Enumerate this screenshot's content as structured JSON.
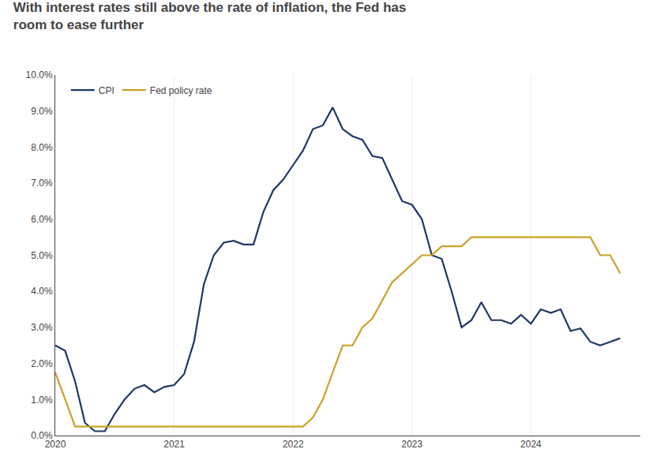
{
  "chart_data": {
    "type": "line",
    "title": "With interest rates still above the rate of inflation, the Fed has\nroom to ease further",
    "x": [
      2020.0,
      2020.083,
      2020.167,
      2020.25,
      2020.333,
      2020.417,
      2020.5,
      2020.583,
      2020.667,
      2020.75,
      2020.833,
      2020.917,
      2021.0,
      2021.083,
      2021.167,
      2021.25,
      2021.333,
      2021.417,
      2021.5,
      2021.583,
      2021.667,
      2021.75,
      2021.833,
      2021.917,
      2022.0,
      2022.083,
      2022.167,
      2022.25,
      2022.333,
      2022.417,
      2022.5,
      2022.583,
      2022.667,
      2022.75,
      2022.833,
      2022.917,
      2023.0,
      2023.083,
      2023.167,
      2023.25,
      2023.333,
      2023.417,
      2023.5,
      2023.583,
      2023.667,
      2023.75,
      2023.833,
      2023.917,
      2024.0,
      2024.083,
      2024.167,
      2024.25,
      2024.333,
      2024.417,
      2024.5,
      2024.583,
      2024.667,
      2024.75
    ],
    "series": [
      {
        "name": "CPI",
        "color": "#1f3864",
        "values": [
          2.5,
          2.35,
          1.5,
          0.35,
          0.12,
          0.12,
          0.6,
          1.0,
          1.3,
          1.4,
          1.2,
          1.35,
          1.4,
          1.7,
          2.6,
          4.2,
          5.0,
          5.35,
          5.4,
          5.3,
          5.3,
          6.2,
          6.8,
          7.1,
          7.5,
          7.9,
          8.5,
          8.6,
          9.1,
          8.5,
          8.3,
          8.2,
          7.75,
          7.7,
          7.1,
          6.5,
          6.4,
          6.0,
          5.0,
          4.9,
          4.0,
          3.0,
          3.2,
          3.7,
          3.2,
          3.2,
          3.1,
          3.35,
          3.1,
          3.5,
          3.4,
          3.5,
          2.9,
          2.97,
          2.6,
          2.5,
          2.6,
          2.7
        ]
      },
      {
        "name": "Fed policy rate",
        "color": "#c9a227",
        "values": [
          1.75,
          1.0,
          0.25,
          0.25,
          0.25,
          0.25,
          0.25,
          0.25,
          0.25,
          0.25,
          0.25,
          0.25,
          0.25,
          0.25,
          0.25,
          0.25,
          0.25,
          0.25,
          0.25,
          0.25,
          0.25,
          0.25,
          0.25,
          0.25,
          0.25,
          0.25,
          0.5,
          1.0,
          1.75,
          2.5,
          2.5,
          3.0,
          3.25,
          3.75,
          4.25,
          4.5,
          4.75,
          5.0,
          5.0,
          5.25,
          5.25,
          5.25,
          5.5,
          5.5,
          5.5,
          5.5,
          5.5,
          5.5,
          5.5,
          5.5,
          5.5,
          5.5,
          5.5,
          5.5,
          5.5,
          5.0,
          5.0,
          4.5
        ]
      }
    ],
    "xlim": [
      2020.0,
      2024.92
    ],
    "xticks": [
      2020,
      2021,
      2022,
      2023,
      2024
    ],
    "ylim": [
      0.0,
      10.0
    ],
    "yticks": [
      {
        "value": 0.0,
        "label": "0.0%"
      },
      {
        "value": 1.0,
        "label": "1.0%"
      },
      {
        "value": 2.0,
        "label": "2.0%"
      },
      {
        "value": 3.0,
        "label": "3.0%"
      },
      {
        "value": 4.0,
        "label": "4.0%"
      },
      {
        "value": 5.0,
        "label": "5.0%"
      },
      {
        "value": 6.0,
        "label": "6.0%"
      },
      {
        "value": 7.0,
        "label": "7.0%"
      },
      {
        "value": 8.0,
        "label": "8.0%"
      },
      {
        "value": 9.0,
        "label": "9.0%"
      },
      {
        "value": 10.0,
        "label": "10.0%"
      }
    ],
    "grid": "x",
    "legend": "upper left"
  }
}
